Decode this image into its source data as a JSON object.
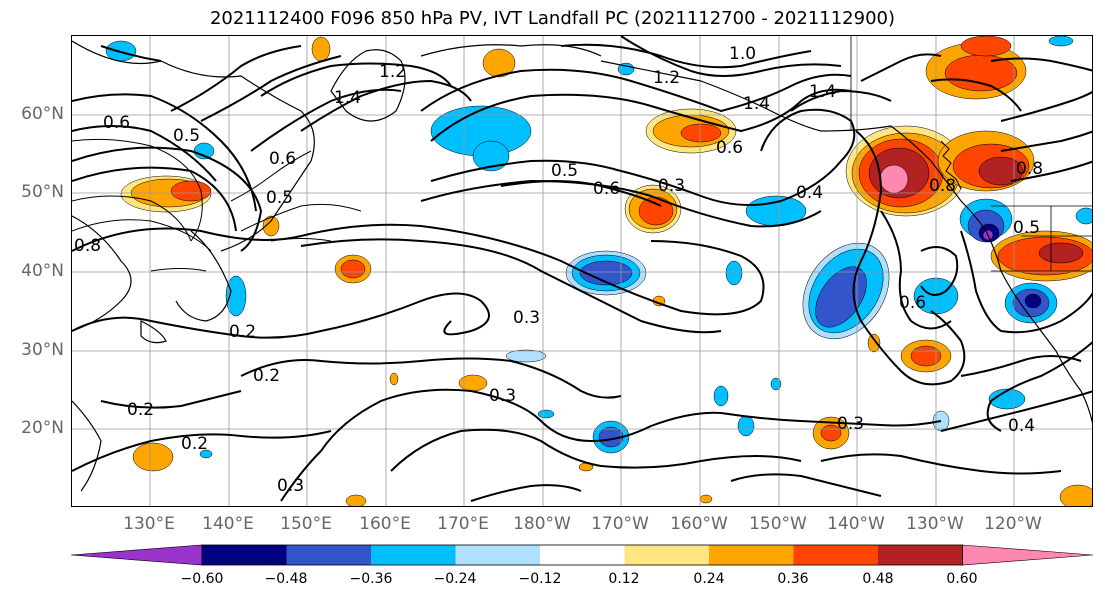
{
  "title": "2021112400 F096 850 hPa PV, IVT Landfall PC (2021112700 - 2021112900)",
  "lat_labels": [
    "60°N",
    "50°N",
    "40°N",
    "30°N",
    "20°N"
  ],
  "lon_labels": [
    "130°E",
    "140°E",
    "150°E",
    "160°E",
    "170°E",
    "180°W",
    "170°W",
    "160°W",
    "150°W",
    "140°W",
    "130°W",
    "120°W"
  ],
  "colorbar": {
    "colors": [
      "#9933cc",
      "#000080",
      "#3355cc",
      "#00bfff",
      "#b0e0ff",
      "#ffffff",
      "#ffe680",
      "#ffa500",
      "#ff4500",
      "#b22222",
      "#ff88b0"
    ],
    "tick_labels": [
      "−0.60",
      "−0.48",
      "−0.36",
      "−0.24",
      "−0.12",
      "0.12",
      "0.24",
      "0.36",
      "0.48",
      "0.60"
    ]
  },
  "contour_labels": [
    "1.2",
    "1.2",
    "1.4",
    "1.0",
    "1.4",
    "1.4",
    "0.6",
    "0.5",
    "0.6",
    "0.5",
    "0.8",
    "0.2",
    "0.2",
    "0.2",
    "0.2",
    "0.3",
    "0.3",
    "0.3",
    "0.5",
    "0.6",
    "0.3",
    "0.4",
    "0.6",
    "0.3",
    "0.4",
    "0.5",
    "0.8",
    "0.6",
    "0.8"
  ]
}
